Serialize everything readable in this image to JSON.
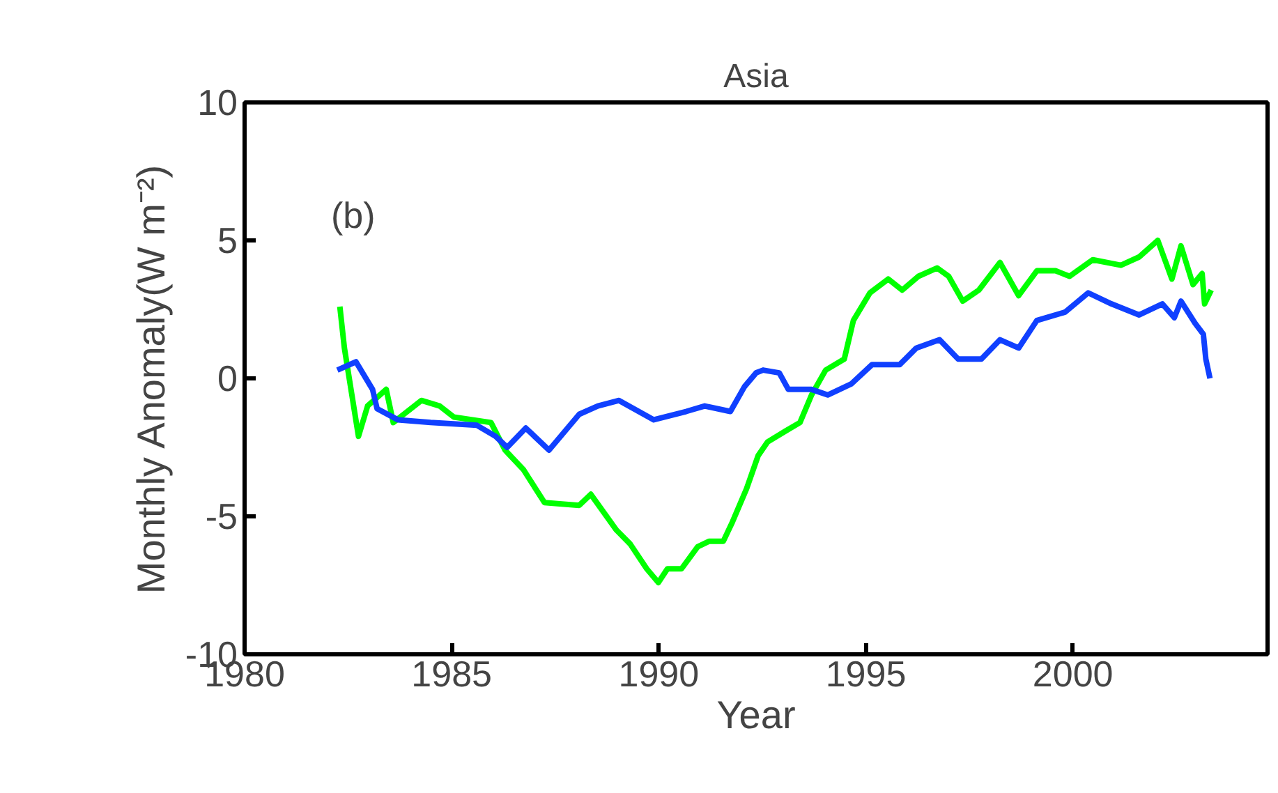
{
  "chart_data": {
    "type": "line",
    "title": "Asia",
    "xlabel": "Year",
    "ylabel": "Monthly Anomaly(W m⁻²)",
    "annotations": [
      "(b)"
    ],
    "xlim": [
      1980,
      2004.7
    ],
    "xticks": [
      1980,
      1985,
      1990,
      1995,
      2000
    ],
    "ylim": [
      -10,
      10
    ],
    "yticks": [
      -10,
      -5,
      0,
      5,
      10
    ],
    "grid": false,
    "marker": "none",
    "line_style": "solid",
    "series": [
      {
        "color": "#00ff00",
        "x": [
          1982.3,
          1982.41,
          1982.75,
          1982.97,
          1983.42,
          1983.59,
          1984.27,
          1984.71,
          1985.05,
          1985.95,
          1986.29,
          1986.73,
          1987.24,
          1988.08,
          1988.36,
          1988.98,
          1989.31,
          1989.71,
          1989.99,
          1990.21,
          1990.55,
          1990.94,
          1991.22,
          1991.56,
          1991.78,
          1992.12,
          1992.4,
          1992.63,
          1993.07,
          1993.41,
          1993.69,
          1994.03,
          1994.48,
          1994.7,
          1995.1,
          1995.54,
          1995.88,
          1996.27,
          1996.72,
          1997.0,
          1997.34,
          1997.73,
          1998.24,
          1998.69,
          1999.13,
          1999.58,
          1999.92,
          2000.48,
          2001.16,
          2001.6,
          2002.05,
          2002.39,
          2002.61,
          2002.9,
          2003.12,
          2003.18,
          2003.34
        ],
        "values": [
          2.6,
          1.1,
          -2.1,
          -1.0,
          -0.4,
          -1.6,
          -0.8,
          -1.0,
          -1.4,
          -1.6,
          -2.6,
          -3.3,
          -4.5,
          -4.6,
          -4.2,
          -5.5,
          -6.0,
          -6.9,
          -7.4,
          -6.9,
          -6.9,
          -6.1,
          -5.9,
          -5.9,
          -5.2,
          -4.0,
          -2.8,
          -2.3,
          -1.9,
          -1.6,
          -0.6,
          0.3,
          0.7,
          2.1,
          3.1,
          3.6,
          3.2,
          3.7,
          4.0,
          3.7,
          2.8,
          3.2,
          4.2,
          3.0,
          3.9,
          3.9,
          3.7,
          4.3,
          4.1,
          4.4,
          5.0,
          3.6,
          4.8,
          3.4,
          3.8,
          2.7,
          3.2
        ]
      },
      {
        "color": "#1040ff",
        "x": [
          1982.24,
          1982.69,
          1983.09,
          1983.2,
          1983.7,
          1984.49,
          1985.61,
          1986.06,
          1986.34,
          1986.79,
          1987.35,
          1988.08,
          1988.53,
          1989.04,
          1989.88,
          1990.66,
          1991.11,
          1991.73,
          1992.07,
          1992.35,
          1992.52,
          1992.91,
          1993.13,
          1993.69,
          1994.08,
          1994.65,
          1995.15,
          1995.82,
          1996.22,
          1996.78,
          1997.23,
          1997.79,
          1998.24,
          1998.69,
          1999.13,
          1999.81,
          2000.37,
          2000.93,
          2001.6,
          2002.16,
          2002.45,
          2002.61,
          2002.95,
          2003.15,
          2003.21,
          2003.31
        ],
        "values": [
          0.3,
          0.6,
          -0.4,
          -1.1,
          -1.5,
          -1.6,
          -1.7,
          -2.1,
          -2.5,
          -1.8,
          -2.6,
          -1.3,
          -1.0,
          -0.8,
          -1.5,
          -1.2,
          -1.0,
          -1.2,
          -0.3,
          0.2,
          0.3,
          0.2,
          -0.4,
          -0.4,
          -0.6,
          -0.2,
          0.5,
          0.5,
          1.1,
          1.4,
          0.7,
          0.7,
          1.4,
          1.1,
          2.1,
          2.4,
          3.1,
          2.7,
          2.3,
          2.7,
          2.2,
          2.8,
          2.0,
          1.6,
          0.7,
          0.0
        ]
      }
    ]
  }
}
